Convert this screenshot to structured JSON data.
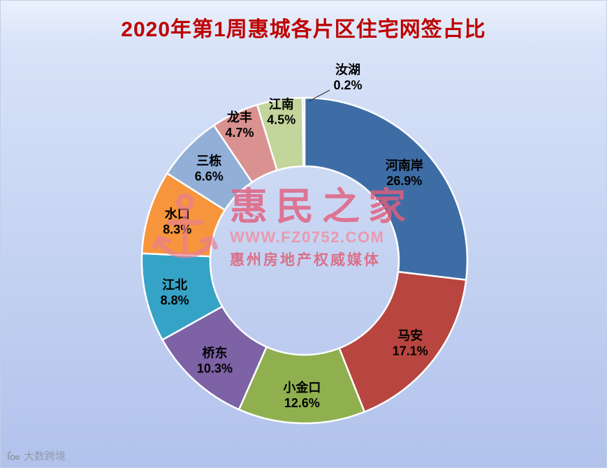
{
  "chart_data": {
    "type": "pie",
    "subtype": "donut",
    "title": "2020年第1周惠城各片区住宅网签占比",
    "title_color": "#be0000",
    "categories": [
      "河南岸",
      "马安",
      "小金口",
      "桥东",
      "江北",
      "水口",
      "三栋",
      "龙丰",
      "江南",
      "汝湖"
    ],
    "values": [
      26.9,
      17.1,
      12.6,
      10.3,
      8.8,
      8.3,
      6.6,
      4.7,
      4.5,
      0.2
    ],
    "colors": [
      "#3e6da5",
      "#b8453f",
      "#90b050",
      "#7d62a5",
      "#35a3c6",
      "#f6953c",
      "#92afd7",
      "#d9928f",
      "#c2d59a",
      "#b3a2c7"
    ],
    "unit": "%",
    "total": 100,
    "start_angle_deg": 0,
    "direction": "clockwise",
    "inner_radius_ratio": 0.58,
    "outside_label_threshold": 1,
    "legend": "none",
    "label_format": "name + percent"
  },
  "watermark": {
    "brand": "惠民之家",
    "url": "WWW.FZ0752.COM",
    "tagline": "惠州房地产权威媒体"
  },
  "footer": {
    "brand": "大数跨境"
  }
}
